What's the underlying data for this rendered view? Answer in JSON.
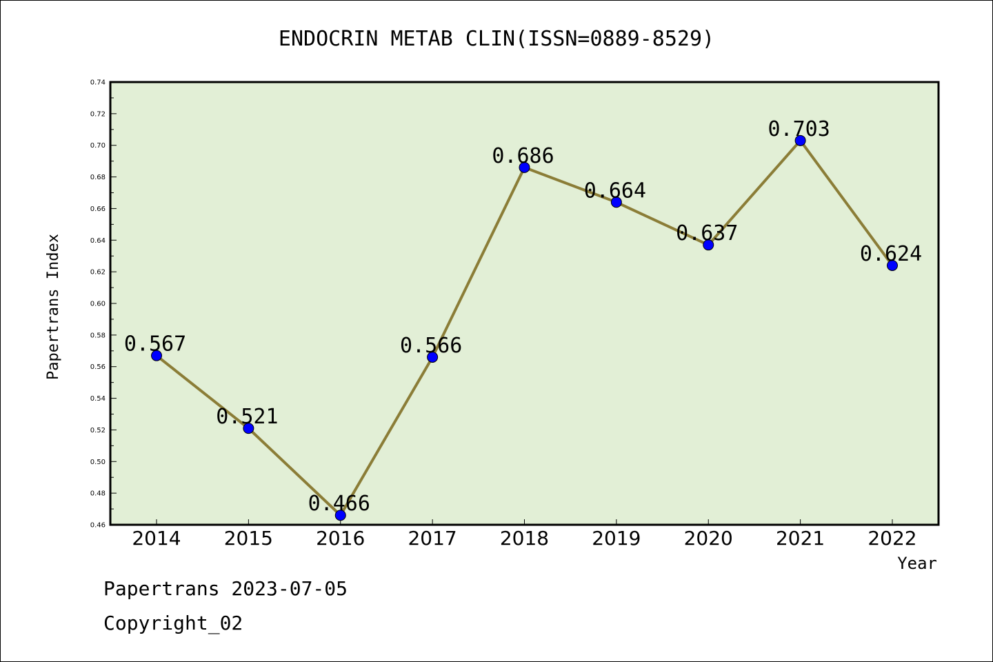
{
  "chart_data": {
    "type": "line",
    "title": "ENDOCRIN METAB CLIN(ISSN=0889-8529)",
    "xlabel": "Year",
    "ylabel": "Papertrans Index",
    "categories": [
      "2014",
      "2015",
      "2016",
      "2017",
      "2018",
      "2019",
      "2020",
      "2021",
      "2022"
    ],
    "values": [
      0.567,
      0.521,
      0.466,
      0.566,
      0.686,
      0.664,
      0.637,
      0.703,
      0.624
    ],
    "data_labels": [
      "0.567",
      "0.521",
      "0.466",
      "0.566",
      "0.686",
      "0.664",
      "0.637",
      "0.703",
      "0.624"
    ],
    "ylim": [
      0.46,
      0.74
    ],
    "yticks": [
      "0.46",
      "0.48",
      "0.50",
      "0.52",
      "0.54",
      "0.56",
      "0.58",
      "0.60",
      "0.62",
      "0.64",
      "0.66",
      "0.68",
      "0.70",
      "0.72",
      "0.74"
    ],
    "grid": false,
    "colors": {
      "plot_background": "#e2efd6",
      "line": "#8b7d37",
      "marker": "#0000ff"
    }
  },
  "footer": {
    "line1": "Papertrans 2023-07-05",
    "line2": "Copyright_02"
  }
}
